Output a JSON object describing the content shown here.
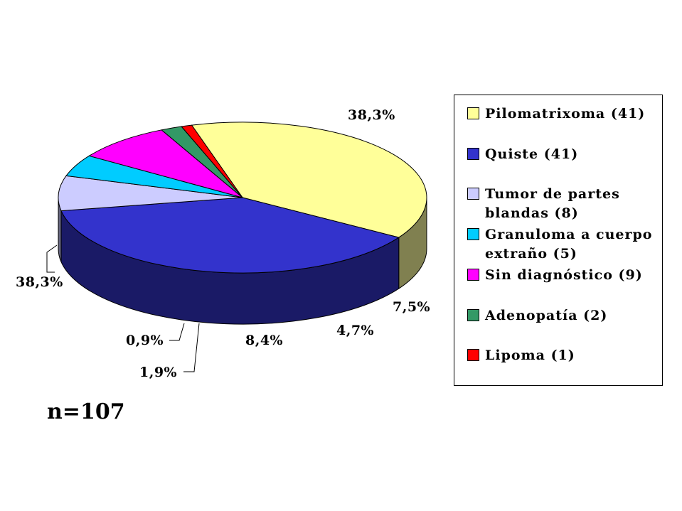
{
  "chart_data": {
    "type": "pie",
    "style": "3d",
    "slices": [
      {
        "label": "Pilomatrixoma (41)",
        "value": 41,
        "percent_label": "38,3%",
        "color": "#FFFF99",
        "side_color": "#808050"
      },
      {
        "label": "Quiste (41)",
        "value": 41,
        "percent_label": "38,3%",
        "color": "#3333CC",
        "side_color": "#1A1A66"
      },
      {
        "label": "Tumor de partes blandas (8)",
        "value": 8,
        "percent_label": "7,5%",
        "color": "#CCCCFF",
        "side_color": "#666680"
      },
      {
        "label": "Granuloma a cuerpo extraño (5)",
        "value": 5,
        "percent_label": "4,7%",
        "color": "#00CCFF",
        "side_color": "#006680"
      },
      {
        "label": "Sin diagnóstico (9)",
        "value": 9,
        "percent_label": "8,4%",
        "color": "#FF00FF",
        "side_color": "#800080"
      },
      {
        "label": "Adenopatía (2)",
        "value": 2,
        "percent_label": "1,9%",
        "color": "#339966",
        "side_color": "#1A4D33"
      },
      {
        "label": "Lipoma (1)",
        "value": 1,
        "percent_label": "0,9%",
        "color": "#FF0000",
        "side_color": "#800000"
      }
    ],
    "legend_position": "right"
  },
  "note": "n=107"
}
